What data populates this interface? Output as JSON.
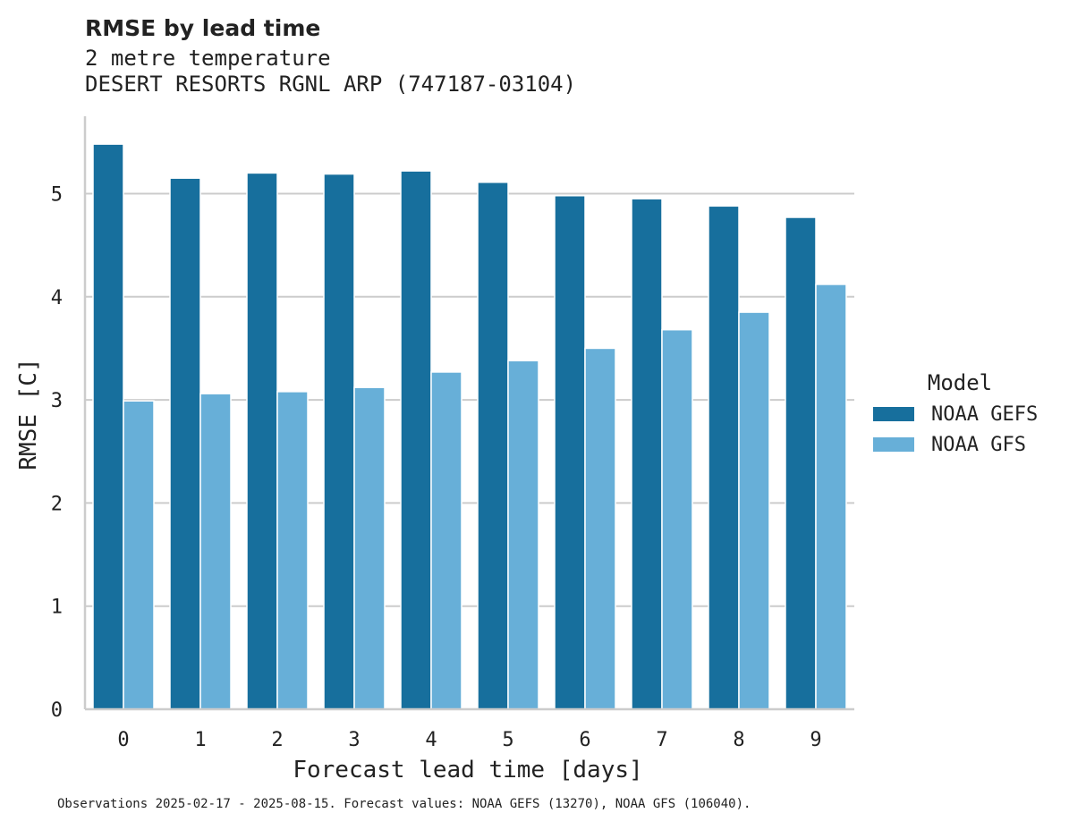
{
  "chart_data": {
    "type": "bar",
    "title": "RMSE by lead time",
    "subtitle_lines": [
      "2 metre temperature",
      "DESERT RESORTS RGNL ARP (747187-03104)"
    ],
    "xlabel": "Forecast lead time [days]",
    "ylabel": "RMSE [C]",
    "categories": [
      "0",
      "1",
      "2",
      "3",
      "4",
      "5",
      "6",
      "7",
      "8",
      "9"
    ],
    "series": [
      {
        "name": "NOAA GEFS",
        "color": "#176f9d",
        "values": [
          5.48,
          5.15,
          5.2,
          5.19,
          5.22,
          5.11,
          4.98,
          4.95,
          4.88,
          4.77
        ]
      },
      {
        "name": "NOAA GFS",
        "color": "#67afd8",
        "values": [
          2.99,
          3.06,
          3.08,
          3.12,
          3.27,
          3.38,
          3.5,
          3.68,
          3.85,
          4.12
        ]
      }
    ],
    "ylim": [
      0,
      5.75
    ],
    "yticks": [
      "0",
      "1",
      "2",
      "3",
      "4",
      "5"
    ],
    "grid": "horizontal",
    "legend": {
      "title": "Model",
      "placement": "right"
    }
  },
  "footer": "Observations 2025-02-17 - 2025-08-15. Forecast values: NOAA GEFS (13270), NOAA GFS (106040)."
}
